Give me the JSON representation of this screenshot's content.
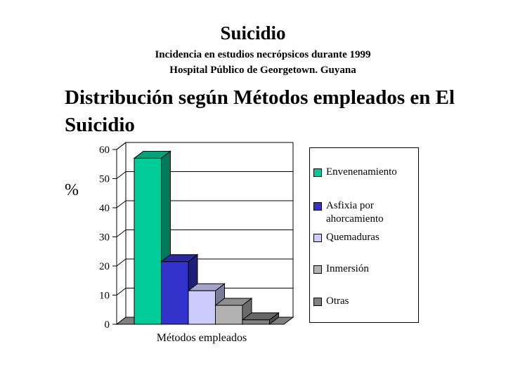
{
  "header": {
    "title": "Suicidio",
    "subtitle1": "Incidencia en estudios necrópsicos durante 1999",
    "subtitle2": "Hospital Público de Georgetown. Guyana"
  },
  "section_title": "Distribución según Métodos empleados en El Suicidio",
  "chart_data": {
    "type": "bar",
    "title": "",
    "xlabel": "Métodos empleados",
    "ylabel": "%",
    "ylim": [
      0,
      60
    ],
    "yticks": [
      0,
      10,
      20,
      30,
      40,
      50,
      60
    ],
    "grid": true,
    "legend_position": "right",
    "three_d": true,
    "series": [
      {
        "name": "Envenenamiento",
        "value": 57,
        "color": "#00CC99"
      },
      {
        "name": "Asfixia por ahorcamiento",
        "value": 21.5,
        "color": "#3333CC"
      },
      {
        "name": "Quemaduras",
        "value": 11.5,
        "color": "#CCCCFF"
      },
      {
        "name": "Inmersión",
        "value": 6.5,
        "color": "#B2B2B2"
      },
      {
        "name": "Otras",
        "value": 1.5,
        "color": "#808080"
      }
    ]
  }
}
